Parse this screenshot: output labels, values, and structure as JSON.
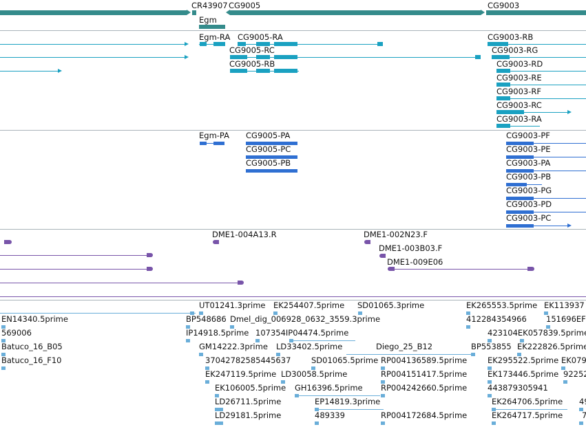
{
  "colors": {
    "gene": "#348b8b",
    "transcript": "#1aa1c1",
    "protein": "#2f6fd2",
    "clone": "#7854a9",
    "est": "#6aaed9",
    "separator": "#a9b3b9"
  },
  "genes_track": {
    "labels": [
      "CR43907",
      "CG9005",
      "CG9003",
      "Egm"
    ]
  },
  "transcripts_track": {
    "labels": [
      "Egm-RA",
      "CG9005-RA",
      "CG9005-RC",
      "CG9005-RB",
      "CG9003-RB",
      "CG9003-RG",
      "CG9003-RD",
      "CG9003-RE",
      "CG9003-RF",
      "CG9003-RC",
      "CG9003-RA"
    ]
  },
  "proteins_track": {
    "labels": [
      "Egm-PA",
      "CG9005-PA",
      "CG9005-PC",
      "CG9005-PB",
      "CG9003-PF",
      "CG9003-PE",
      "CG9003-PA",
      "CG9003-PB",
      "CG9003-PG",
      "CG9003-PD",
      "CG9003-PC"
    ]
  },
  "clones_track": {
    "labels": [
      "DME1-004A13.R",
      "DME1-002N23.F",
      "DME1-003B03.F",
      "DME1-009E06"
    ]
  },
  "ests_track": {
    "labels": [
      "UT01241.3prime",
      "EK254407.5prime",
      "SD01065.3prime",
      "EK265553.5prime",
      "EK113937",
      "EN14340.5prime",
      "BP548686",
      "Dmel_dig_006928_0632_3559.3prime",
      "412284354966",
      "151696EF",
      "569006",
      "IP14918.5prime",
      "107354IP04474.5prime",
      "423104EK057839.5prime",
      "GM14222.3prime",
      "LD33402.5prime",
      "Diego_25_B12",
      "BP553855",
      "EK222826.5prime",
      "Batuco_16_B05",
      "37042782585445637",
      "SD01065.5prime",
      "RP004136589.5prime",
      "EK295522.5prime",
      "EK079",
      "Batuco_16_F10",
      "EK247119.5prime",
      "LD30058.5prime",
      "RP004151417.5prime",
      "EK173446.5prime",
      "92252",
      "EK106005.5prime",
      "GH16396.5prime",
      "RP004242660.5prime",
      "443879305941",
      "LD26711.5prime",
      "EP14819.3prime",
      "EK264706.5prime",
      "49",
      "LD29181.5prime",
      "489339",
      "RP004172684.5prime",
      "EK264717.5prime",
      "7"
    ]
  }
}
